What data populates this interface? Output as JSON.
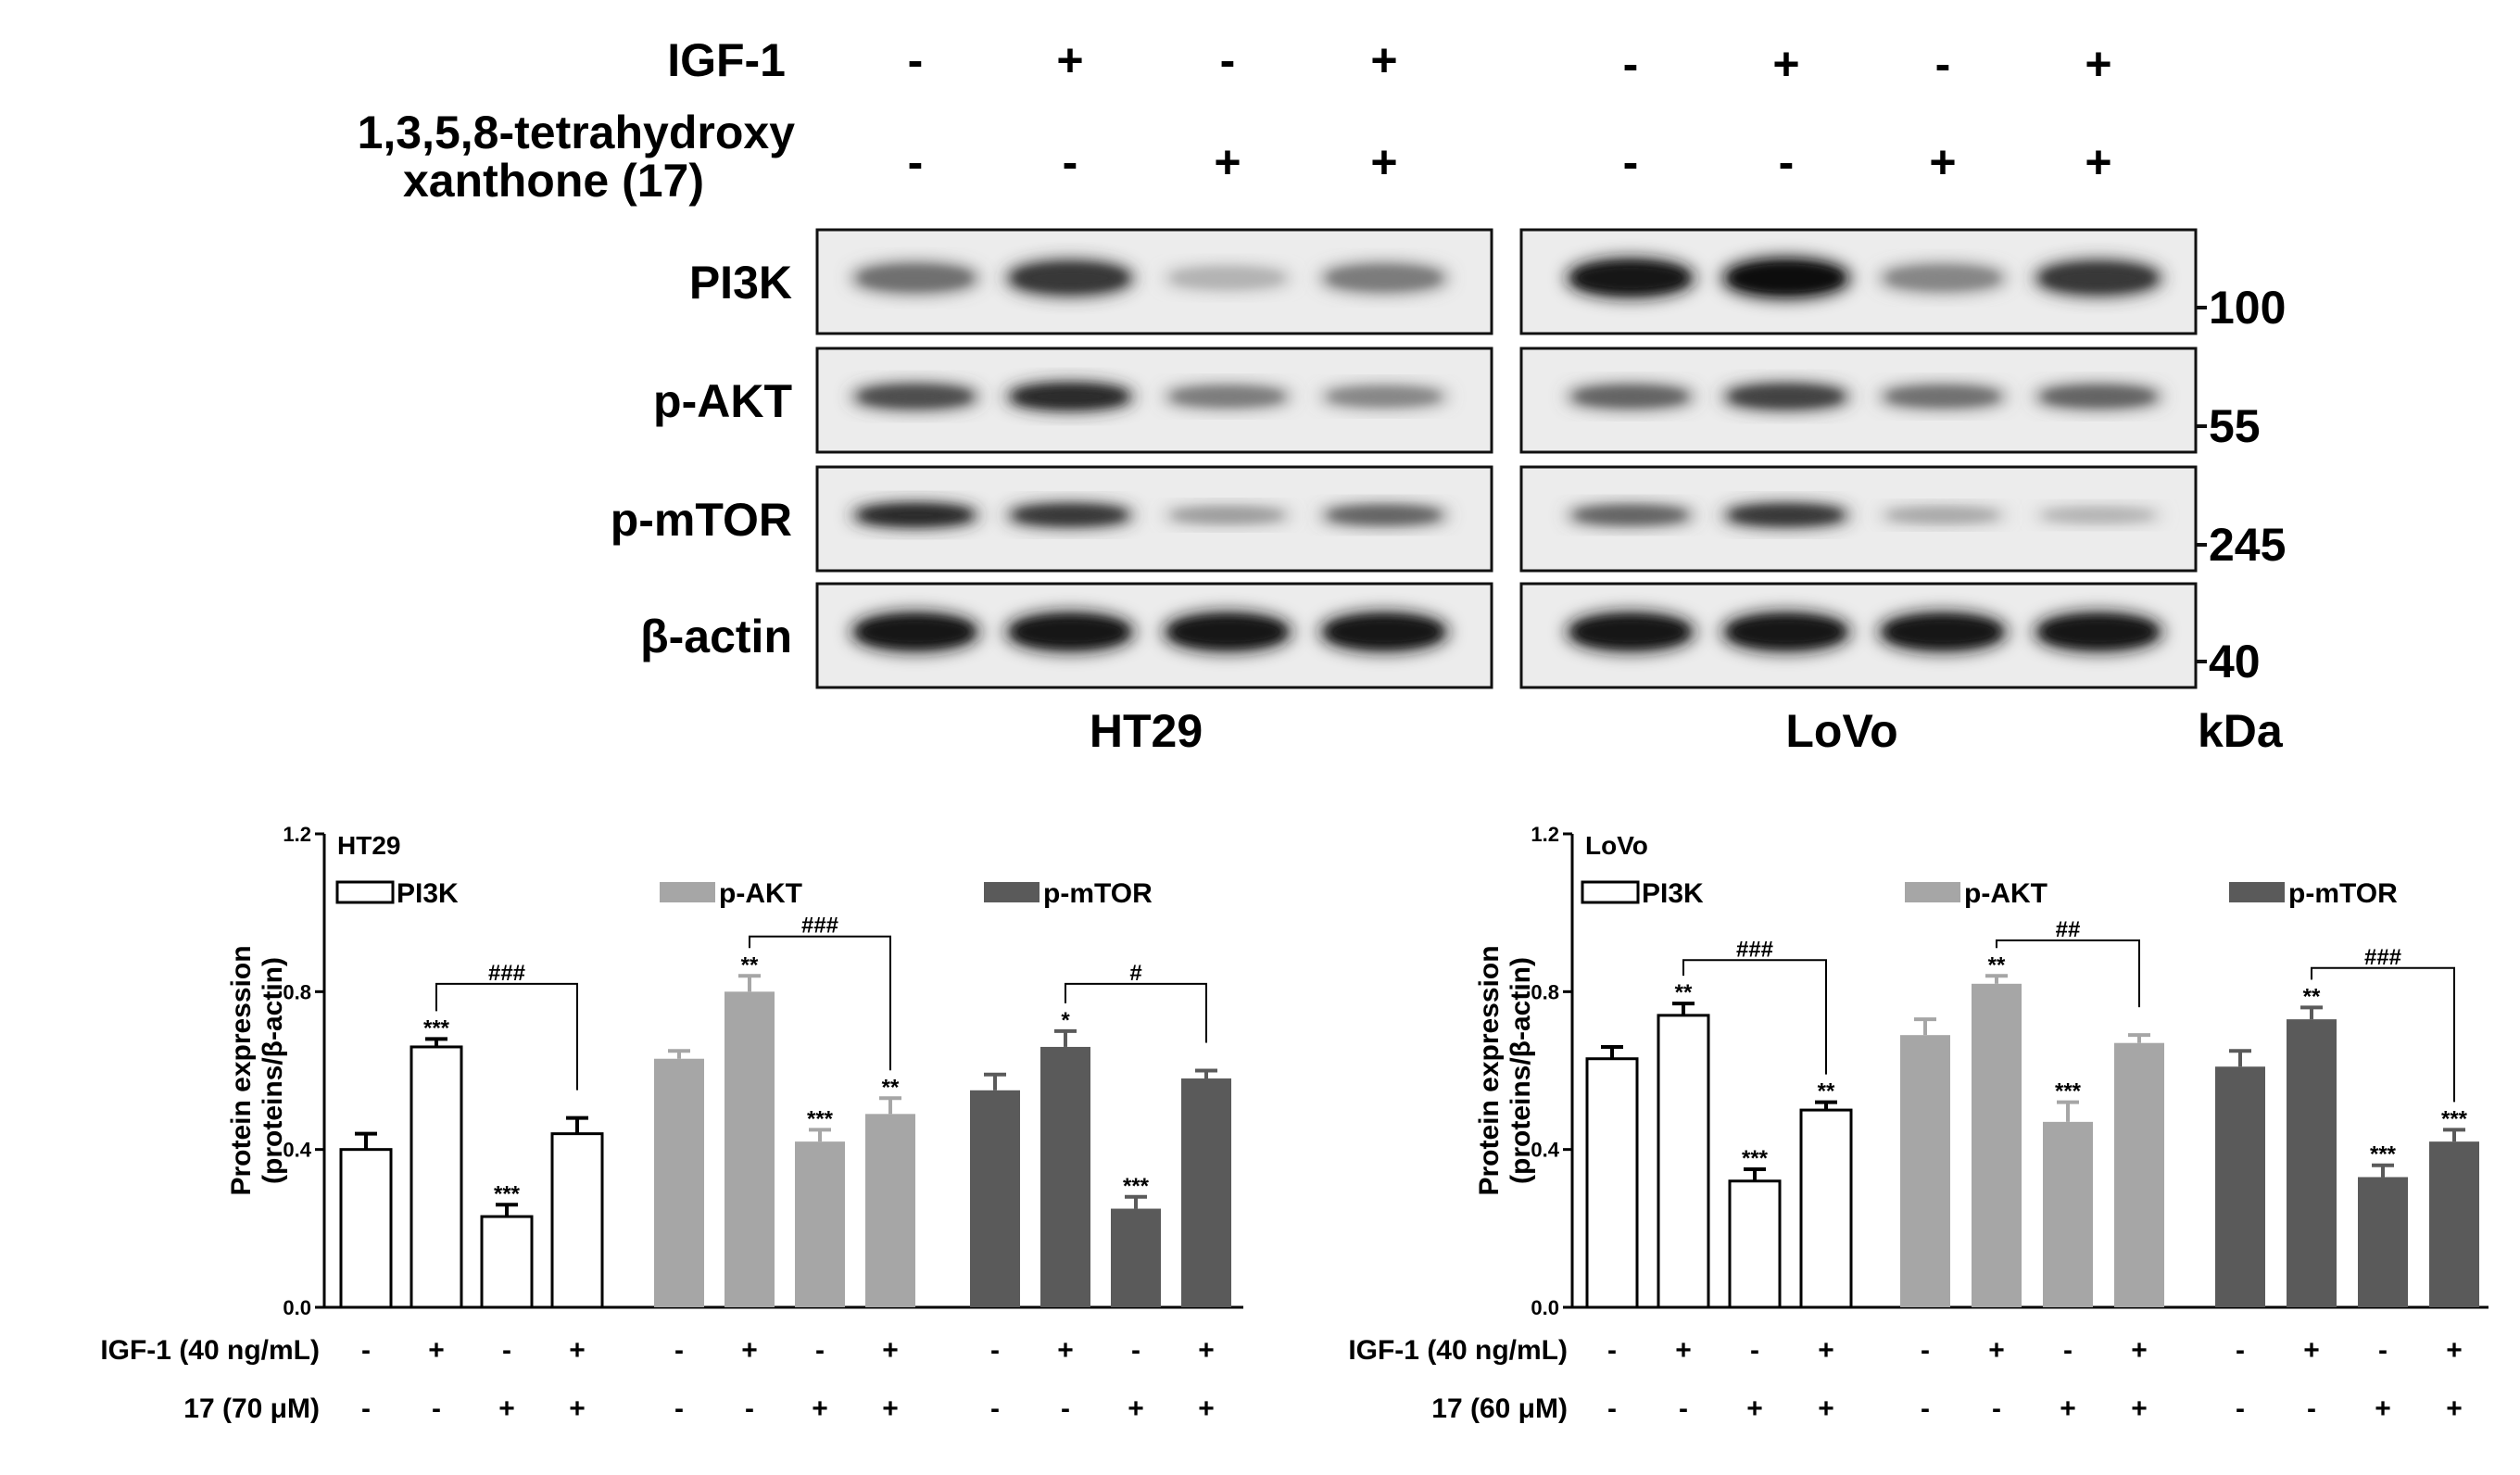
{
  "blot": {
    "treat1_label": "IGF-1",
    "treat2_label_line1": "1,3,5,8-tetrahydroxy",
    "treat2_label_line2": "xanthone (17)",
    "treat1_signs": [
      "-",
      "+",
      "-",
      "+"
    ],
    "treat2_signs": [
      "-",
      "-",
      "+",
      "+"
    ],
    "cell_lines": [
      "HT29",
      "LoVo"
    ],
    "kda_label": "kDa",
    "rows": [
      {
        "label": "PI3K",
        "kda": "100"
      },
      {
        "label": "p-AKT",
        "kda": "55"
      },
      {
        "label": "p-mTOR",
        "kda": "245"
      },
      {
        "label": "β-actin",
        "kda": "40"
      }
    ],
    "band_intensity": {
      "HT29": [
        [
          0.55,
          0.8,
          0.25,
          0.5
        ],
        [
          0.7,
          0.85,
          0.5,
          0.45
        ],
        [
          0.85,
          0.8,
          0.35,
          0.6
        ],
        [
          0.95,
          0.95,
          0.95,
          0.95
        ]
      ],
      "LoVo": [
        [
          0.95,
          1.0,
          0.45,
          0.8
        ],
        [
          0.6,
          0.75,
          0.55,
          0.6
        ],
        [
          0.6,
          0.8,
          0.3,
          0.25
        ],
        [
          0.95,
          0.95,
          0.95,
          0.95
        ]
      ]
    }
  },
  "chart_data": [
    {
      "type": "bar",
      "title": "HT29",
      "ylabel_line1": "Protein expression",
      "ylabel_line2": "(proteins/β-actin)",
      "ylim": [
        0,
        1.2
      ],
      "yticks": [
        "0.0",
        "0.4",
        "0.8",
        "1.2"
      ],
      "legend": [
        "PI3K",
        "p-AKT",
        "p-mTOR"
      ],
      "colors": [
        "#ffffff",
        "#a6a6a6",
        "#5a5a5a"
      ],
      "treat_row1_label": "IGF-1 (40 ng/mL)",
      "treat_row2_label": "17 (70 μM)",
      "treat_row1_signs": [
        "-",
        "+",
        "-",
        "+"
      ],
      "treat_row2_signs": [
        "-",
        "-",
        "+",
        "+"
      ],
      "series": [
        {
          "name": "PI3K",
          "values": [
            0.4,
            0.66,
            0.23,
            0.44
          ],
          "errors": [
            0.04,
            0.02,
            0.03,
            0.04
          ],
          "stars": [
            "",
            "***",
            "***",
            ""
          ],
          "bracket": {
            "from": 1,
            "to": 3,
            "label": "###",
            "y": 0.82
          }
        },
        {
          "name": "p-AKT",
          "values": [
            0.63,
            0.8,
            0.42,
            0.49
          ],
          "errors": [
            0.02,
            0.04,
            0.03,
            0.04
          ],
          "stars": [
            "",
            "**",
            "***",
            "**"
          ],
          "bracket": {
            "from": 1,
            "to": 3,
            "label": "###",
            "y": 0.94
          }
        },
        {
          "name": "p-mTOR",
          "values": [
            0.55,
            0.66,
            0.25,
            0.58
          ],
          "errors": [
            0.04,
            0.04,
            0.03,
            0.02
          ],
          "stars": [
            "",
            "*",
            "***",
            ""
          ],
          "bracket": {
            "from": 1,
            "to": 3,
            "label": "#",
            "y": 0.82
          }
        }
      ]
    },
    {
      "type": "bar",
      "title": "LoVo",
      "ylabel_line1": "Protein expression",
      "ylabel_line2": "(proteins/β-actin)",
      "ylim": [
        0,
        1.2
      ],
      "yticks": [
        "0.0",
        "0.4",
        "0.8",
        "1.2"
      ],
      "legend": [
        "PI3K",
        "p-AKT",
        "p-mTOR"
      ],
      "colors": [
        "#ffffff",
        "#a6a6a6",
        "#5a5a5a"
      ],
      "treat_row1_label": "IGF-1 (40 ng/mL)",
      "treat_row2_label": "17 (60 μM)",
      "treat_row1_signs": [
        "-",
        "+",
        "-",
        "+"
      ],
      "treat_row2_signs": [
        "-",
        "-",
        "+",
        "+"
      ],
      "series": [
        {
          "name": "PI3K",
          "values": [
            0.63,
            0.74,
            0.32,
            0.5
          ],
          "errors": [
            0.03,
            0.03,
            0.03,
            0.02
          ],
          "stars": [
            "",
            "**",
            "***",
            "**"
          ],
          "bracket": {
            "from": 1,
            "to": 3,
            "label": "###",
            "y": 0.88
          }
        },
        {
          "name": "p-AKT",
          "values": [
            0.69,
            0.82,
            0.47,
            0.67
          ],
          "errors": [
            0.04,
            0.02,
            0.05,
            0.02
          ],
          "stars": [
            "",
            "**",
            "***",
            ""
          ],
          "bracket": {
            "from": 1,
            "to": 3,
            "label": "##",
            "y": 0.93
          }
        },
        {
          "name": "p-mTOR",
          "values": [
            0.61,
            0.73,
            0.33,
            0.42
          ],
          "errors": [
            0.04,
            0.03,
            0.03,
            0.03
          ],
          "stars": [
            "",
            "**",
            "***",
            "***"
          ],
          "bracket": {
            "from": 1,
            "to": 3,
            "label": "###",
            "y": 0.86
          }
        }
      ]
    }
  ]
}
